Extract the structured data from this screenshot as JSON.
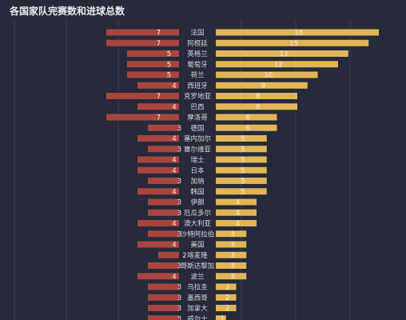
{
  "title": "各国家队完赛数和进球总数",
  "colors": {
    "background": "#262a3b",
    "matches_bar": "#a8453f",
    "goals_bar": "#e2b657",
    "grid": "#3a3f52"
  },
  "chart_data": {
    "type": "bar",
    "title": "各国家队完赛数和进球总数",
    "layout": "butterfly-horizontal",
    "categories": [
      "法国",
      "阿根廷",
      "英格兰",
      "葡萄牙",
      "荷兰",
      "西班牙",
      "克罗地亚",
      "巴西",
      "摩洛哥",
      "德国",
      "塞内加尔",
      "塞尔维亚",
      "瑞士",
      "日本",
      "加纳",
      "韩国",
      "伊朗",
      "厄瓜多尔",
      "澳大利亚",
      "沙特阿拉伯",
      "美国",
      "喀麦隆",
      "哥斯达黎加",
      "波兰",
      "乌拉圭",
      "墨西哥",
      "加拿大",
      "威尔士"
    ],
    "series": [
      {
        "values": [
          7,
          7,
          5,
          5,
          5,
          4,
          7,
          4,
          7,
          3,
          4,
          3,
          4,
          4,
          3,
          4,
          3,
          3,
          4,
          3,
          4,
          2,
          3,
          4,
          3,
          3,
          3,
          3
        ]
      },
      {
        "values": [
          16,
          15,
          13,
          12,
          10,
          9,
          8,
          8,
          6,
          6,
          5,
          5,
          5,
          5,
          5,
          5,
          4,
          4,
          4,
          3,
          3,
          3,
          3,
          3,
          2,
          2,
          2,
          1
        ]
      }
    ],
    "left_xlim": [
      0,
      8
    ],
    "right_xlim": [
      0,
      16
    ],
    "grid": true,
    "legend": "none"
  }
}
